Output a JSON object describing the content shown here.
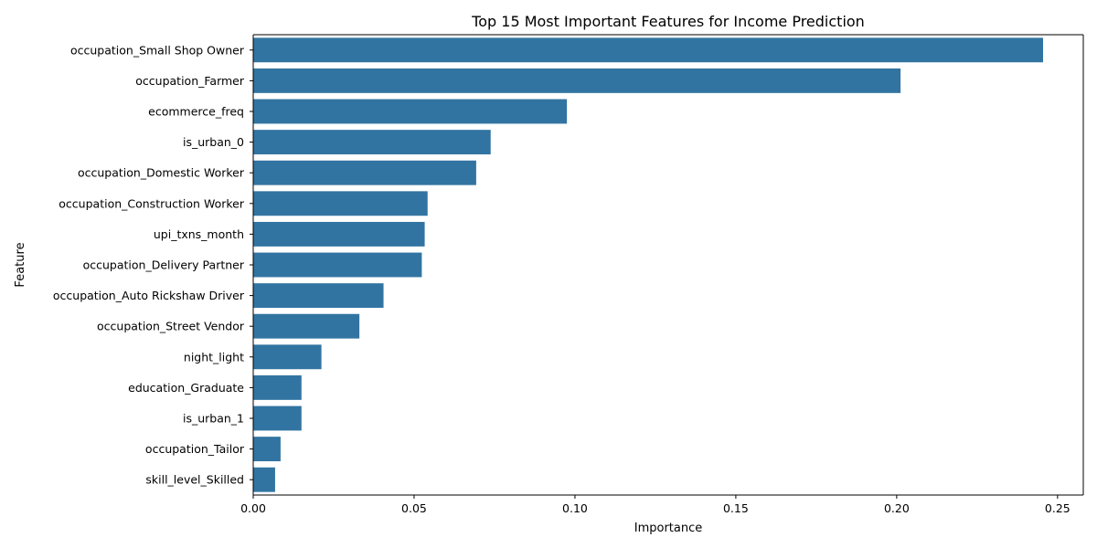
{
  "chart_data": {
    "type": "bar",
    "orientation": "horizontal",
    "title": "Top 15 Most Important Features for Income Prediction",
    "xlabel": "Importance",
    "ylabel": "Feature",
    "xlim": [
      0,
      0.258
    ],
    "xticks": [
      0.0,
      0.05,
      0.1,
      0.15,
      0.2,
      0.25
    ],
    "xtick_labels": [
      "0.00",
      "0.05",
      "0.10",
      "0.15",
      "0.20",
      "0.25"
    ],
    "bar_color": "#3274a1",
    "grid": false,
    "categories": [
      "occupation_Small Shop Owner",
      "occupation_Farmer",
      "ecommerce_freq",
      "is_urban_0",
      "occupation_Domestic Worker",
      "occupation_Construction Worker",
      "upi_txns_month",
      "occupation_Delivery Partner",
      "occupation_Auto Rickshaw Driver",
      "occupation_Street Vendor",
      "night_light",
      "education_Graduate",
      "is_urban_1",
      "occupation_Tailor",
      "skill_level_Skilled"
    ],
    "values": [
      0.2455,
      0.2012,
      0.0975,
      0.0738,
      0.0693,
      0.0542,
      0.0533,
      0.0524,
      0.0405,
      0.033,
      0.0212,
      0.015,
      0.015,
      0.0085,
      0.0068
    ]
  }
}
